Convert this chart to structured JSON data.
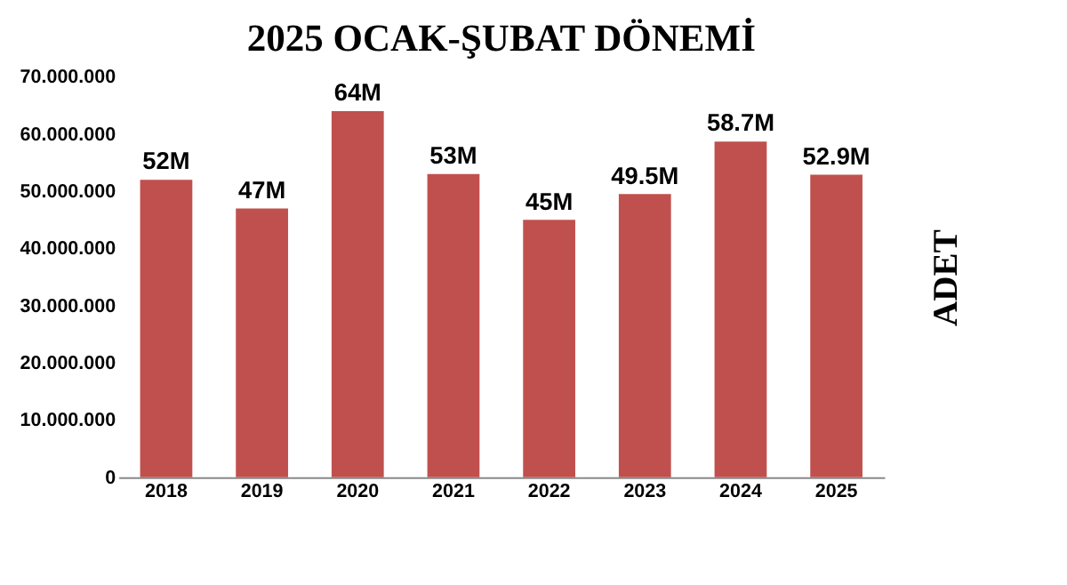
{
  "chart_data": {
    "type": "bar",
    "title": "2025 OCAK-ŞUBAT DÖNEMİ",
    "ylabel": "ADET",
    "categories": [
      "2018",
      "2019",
      "2020",
      "2021",
      "2022",
      "2023",
      "2024",
      "2025"
    ],
    "values": [
      52000000,
      47000000,
      64000000,
      53000000,
      45000000,
      49500000,
      58700000,
      52900000
    ],
    "value_labels": [
      "52M",
      "47M",
      "64M",
      "53M",
      "45M",
      "49.5M",
      "58.7M",
      "52.9M"
    ],
    "color": "#c0504d",
    "ylim": [
      0,
      70000000
    ],
    "yticks": [
      {
        "value": 0,
        "label": "0"
      },
      {
        "value": 10000000,
        "label": "10.000.000"
      },
      {
        "value": 20000000,
        "label": "20.000.000"
      },
      {
        "value": 30000000,
        "label": "30.000.000"
      },
      {
        "value": 40000000,
        "label": "40.000.000"
      },
      {
        "value": 50000000,
        "label": "50.000.000"
      },
      {
        "value": 60000000,
        "label": "60.000.000"
      },
      {
        "value": 70000000,
        "label": "70.000.000"
      }
    ],
    "grid": false
  }
}
